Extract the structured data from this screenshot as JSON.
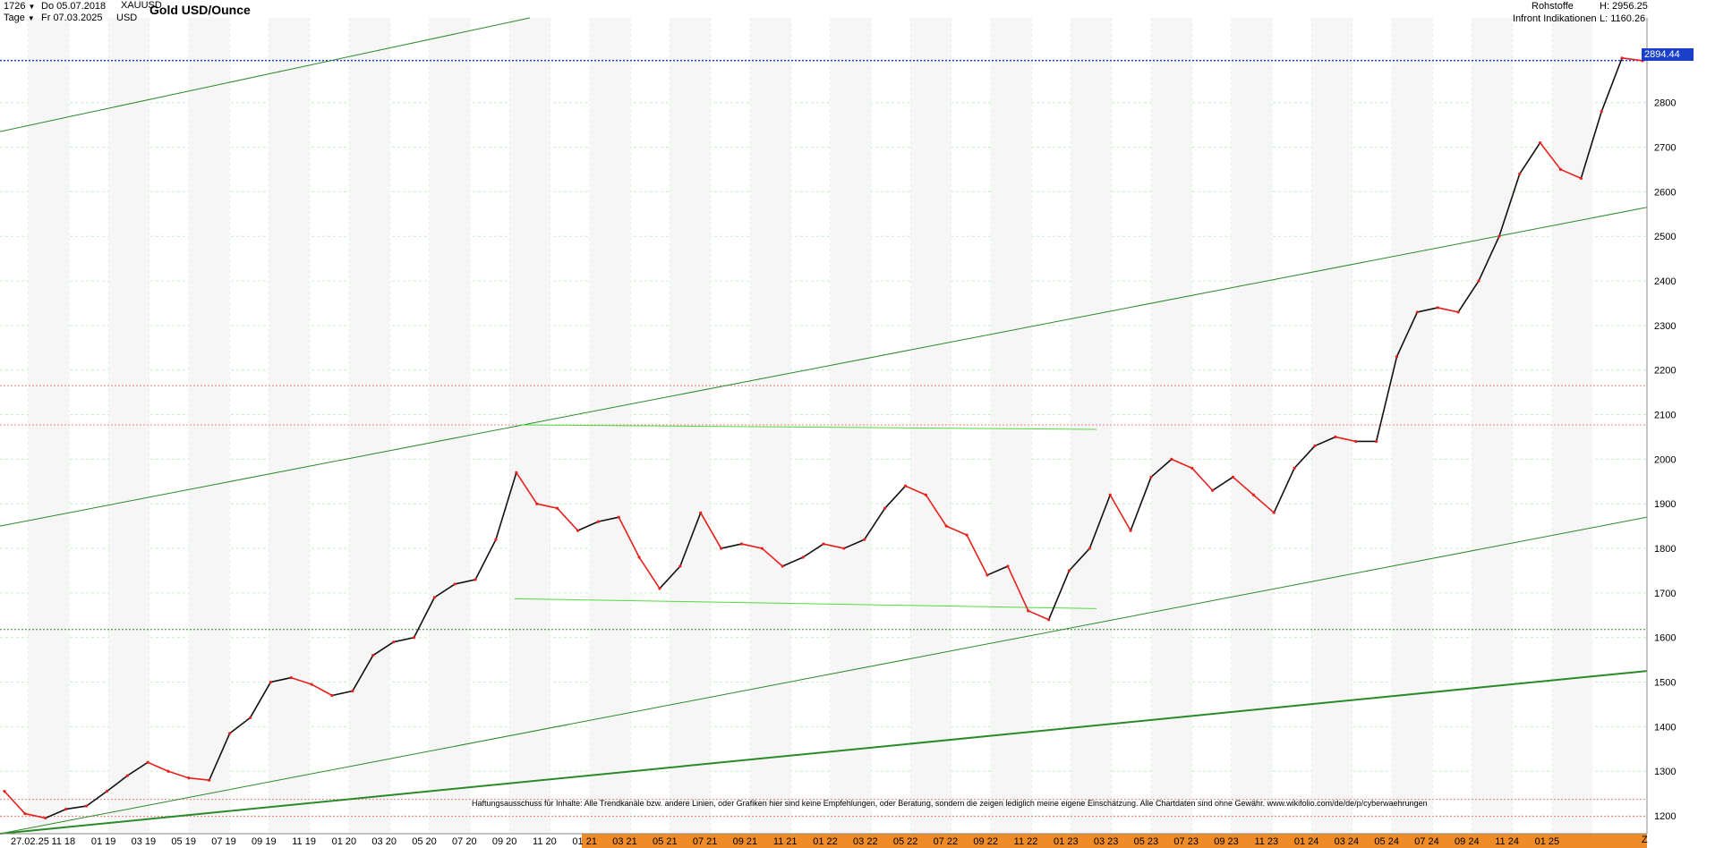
{
  "header": {
    "bars": "1726",
    "period": "Tage",
    "date_from": "Do 05.07.2018",
    "date_to": "Fr 07.03.2025",
    "symbol": "XAUUSD",
    "currency": "USD",
    "title": "Gold USD/Ounce",
    "category": "Rohstoffe",
    "source": "Infront Indikationen",
    "high": "H: 2956.25",
    "low": "L: 1160.26"
  },
  "last_price": "2894.44",
  "disclaimer": "Haftungsausschuss für Inhalte: Alle Trendkanäle bzw. andere Linien, oder Grafiken hier sind keine Empfehlungen, oder Beratung, sondern die zeigen lediglich meine eigene Einschätzung. Alle Chartdaten sind ohne Gewähr. www.wikifolio.com/de/de/p/cyberwaehrungen",
  "z_label": "Z",
  "colors": {
    "up": "#111111",
    "down": "#e8201c",
    "trend": "#2a8a2a",
    "range": "#4fdc3c",
    "price_line": "#1a3fc9",
    "grid": "#c8ecc8",
    "axis_band": "#f08c28"
  },
  "chart_data": {
    "type": "line",
    "title": "Gold USD/Ounce",
    "ylim": [
      1160,
      2990
    ],
    "y_ticks": [
      1200,
      1300,
      1400,
      1500,
      1600,
      1700,
      1800,
      1900,
      2000,
      2100,
      2200,
      2300,
      2400,
      2500,
      2600,
      2700,
      2800
    ],
    "x_tick_labels": [
      "27.02.25",
      "11 18",
      "01 19",
      "03 19",
      "05 19",
      "07 19",
      "09 19",
      "11 19",
      "01 20",
      "03 20",
      "05 20",
      "07 20",
      "09 20",
      "11 20",
      "01 21",
      "03 21",
      "05 21",
      "07 21",
      "09 21",
      "11 21",
      "01 22",
      "03 22",
      "05 22",
      "07 22",
      "09 22",
      "11 22",
      "01 23",
      "03 23",
      "05 23",
      "07 23",
      "09 23",
      "11 23",
      "01 24",
      "03 24",
      "05 24",
      "07 24",
      "09 24",
      "11 24",
      "01 25"
    ],
    "series": [
      {
        "x": [
          "2018-07",
          "2018-08",
          "2018-09",
          "2018-10",
          "2018-11",
          "2018-12",
          "2019-01",
          "2019-02",
          "2019-03",
          "2019-04",
          "2019-05",
          "2019-06",
          "2019-07",
          "2019-08",
          "2019-09",
          "2019-10",
          "2019-11",
          "2019-12",
          "2020-01",
          "2020-02",
          "2020-03",
          "2020-04",
          "2020-05",
          "2020-06",
          "2020-07",
          "2020-08",
          "2020-09",
          "2020-10",
          "2020-11",
          "2020-12",
          "2021-01",
          "2021-02",
          "2021-03",
          "2021-04",
          "2021-05",
          "2021-06",
          "2021-07",
          "2021-08",
          "2021-09",
          "2021-10",
          "2021-11",
          "2021-12",
          "2022-01",
          "2022-02",
          "2022-03",
          "2022-04",
          "2022-05",
          "2022-06",
          "2022-07",
          "2022-08",
          "2022-09",
          "2022-10",
          "2022-11",
          "2022-12",
          "2023-01",
          "2023-02",
          "2023-03",
          "2023-04",
          "2023-05",
          "2023-06",
          "2023-07",
          "2023-08",
          "2023-09",
          "2023-10",
          "2023-11",
          "2023-12",
          "2024-01",
          "2024-02",
          "2024-03",
          "2024-04",
          "2024-05",
          "2024-06",
          "2024-07",
          "2024-08",
          "2024-09",
          "2024-10",
          "2024-11",
          "2024-12",
          "2025-01",
          "2025-02",
          "2025-03"
        ],
        "values": [
          1255,
          1205,
          1195,
          1215,
          1222,
          1255,
          1290,
          1320,
          1300,
          1285,
          1280,
          1385,
          1420,
          1500,
          1510,
          1495,
          1470,
          1480,
          1560,
          1590,
          1600,
          1690,
          1720,
          1730,
          1820,
          1970,
          1900,
          1890,
          1840,
          1860,
          1870,
          1780,
          1710,
          1760,
          1880,
          1800,
          1810,
          1800,
          1760,
          1780,
          1810,
          1800,
          1820,
          1890,
          1940,
          1920,
          1850,
          1830,
          1740,
          1760,
          1660,
          1640,
          1750,
          1800,
          1920,
          1840,
          1960,
          2000,
          1980,
          1930,
          1960,
          1920,
          1880,
          1980,
          2030,
          2050,
          2040,
          2040,
          2230,
          2330,
          2340,
          2330,
          2400,
          2500,
          2640,
          2710,
          2650,
          2630,
          2780,
          2900,
          2894
        ]
      }
    ],
    "reference_levels": [
      2894.44,
      2165,
      2077,
      1618,
      1237,
      1199
    ]
  }
}
